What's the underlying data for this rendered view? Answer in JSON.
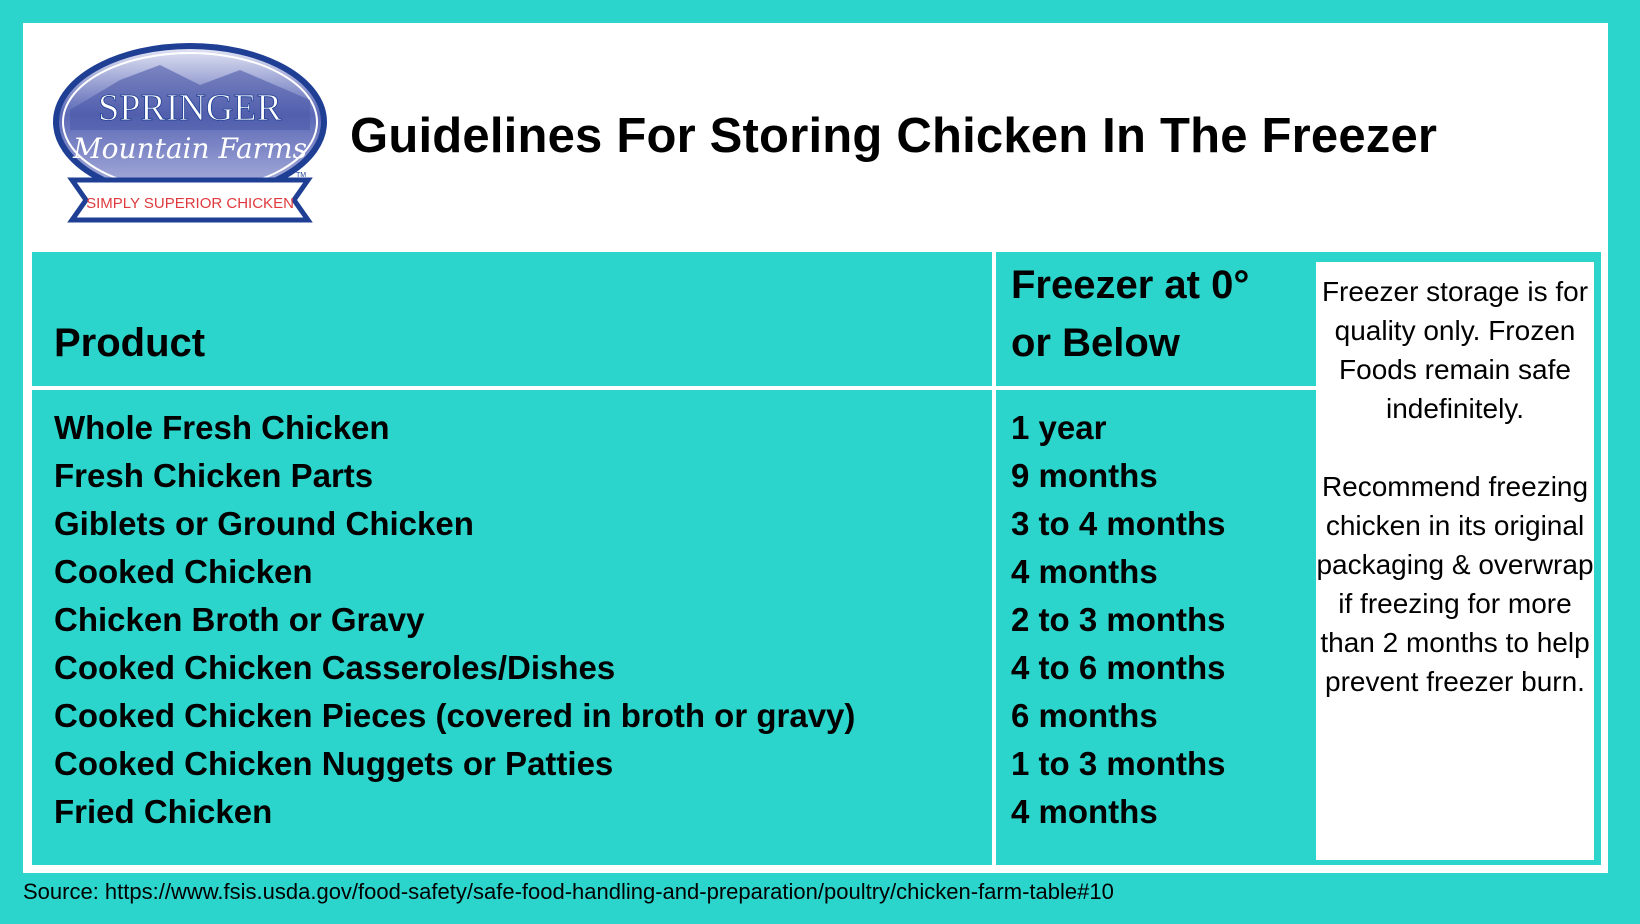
{
  "logo": {
    "line1": "SPRINGER",
    "line2": "Mountain Farms",
    "tagline": "SIMPLY SUPERIOR CHICKEN",
    "tm": "TM"
  },
  "title": "Guidelines For Storing Chicken In The Freezer",
  "table": {
    "headers": {
      "product": "Product",
      "freezer_line1": "Freezer at 0°",
      "freezer_line2": "or Below"
    },
    "rows": [
      {
        "product": "Whole Fresh Chicken",
        "time": "1 year"
      },
      {
        "product": "Fresh Chicken Parts",
        "time": "9 months"
      },
      {
        "product": "Giblets or Ground Chicken",
        "time": "3 to 4 months"
      },
      {
        "product": "Cooked Chicken",
        "time": "4 months"
      },
      {
        "product": "Chicken Broth or Gravy",
        "time": "2 to 3 months"
      },
      {
        "product": "Cooked Chicken Casseroles/Dishes",
        "time": "4 to 6 months"
      },
      {
        "product": "Cooked Chicken Pieces (covered in broth or gravy)",
        "time": "6 months"
      },
      {
        "product": "Cooked Chicken Nuggets or Patties",
        "time": "1 to 3 months"
      },
      {
        "product": "Fried Chicken",
        "time": "4 months"
      }
    ]
  },
  "note": {
    "para1": "Freezer storage is for quality only. Frozen Foods remain safe indefinitely.",
    "para2": "Recommend freezing chicken in its original packaging & overwrap if freezing for more than 2 months to help prevent freezer burn."
  },
  "source": "Source: https://www.fsis.usda.gov/food-safety/safe-food-handling-and-preparation/poultry/chicken-farm-table#10",
  "colors": {
    "background": "#2BD5CC",
    "panel": "#FFFFFF",
    "logo_blue": "#1F3F95",
    "logo_red": "#E03A3E"
  }
}
